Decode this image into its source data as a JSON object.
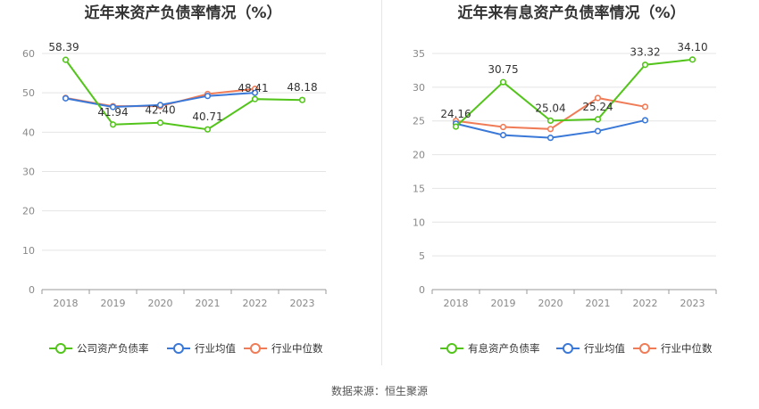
{
  "source": "数据来源：恒生聚源",
  "colors": {
    "company": "#52c41a",
    "avg": "#3a78d8",
    "median": "#f07c57",
    "grid": "#e4e4e4",
    "axis": "#999999"
  },
  "chart_data": [
    {
      "type": "line",
      "title": "近年来资产负债率情况（%）",
      "categories": [
        "2018",
        "2019",
        "2020",
        "2021",
        "2022",
        "2023"
      ],
      "ylim": [
        0,
        60
      ],
      "yticks": [
        0,
        10,
        20,
        30,
        40,
        50,
        60
      ],
      "legend_position": "bottom",
      "series": [
        {
          "name": "公司资产负债率",
          "color": "#52c41a",
          "values": [
            58.39,
            41.94,
            42.4,
            40.71,
            48.41,
            48.18
          ],
          "labels": [
            "58.39",
            "41.94",
            "42.40",
            "40.71",
            "48.41",
            "48.18"
          ]
        },
        {
          "name": "行业均值",
          "color": "#3a78d8",
          "values": [
            48.6,
            46.4,
            46.9,
            49.2,
            50.0,
            null
          ]
        },
        {
          "name": "行业中位数",
          "color": "#f07c57",
          "values": [
            48.7,
            46.6,
            46.6,
            49.7,
            51.0,
            null
          ]
        }
      ]
    },
    {
      "type": "line",
      "title": "近年来有息资产负债率情况（%）",
      "categories": [
        "2018",
        "2019",
        "2020",
        "2021",
        "2022",
        "2023"
      ],
      "ylim": [
        0,
        35
      ],
      "yticks": [
        0,
        5,
        10,
        15,
        20,
        25,
        30,
        35
      ],
      "legend_position": "bottom",
      "series": [
        {
          "name": "有息资产负债率",
          "color": "#52c41a",
          "values": [
            24.16,
            30.75,
            25.04,
            25.24,
            33.32,
            34.1
          ],
          "labels": [
            "24.16",
            "30.75",
            "25.04",
            "25.24",
            "33.32",
            "34.10"
          ]
        },
        {
          "name": "行业均值",
          "color": "#3a78d8",
          "values": [
            24.6,
            22.9,
            22.5,
            23.5,
            25.1,
            null
          ]
        },
        {
          "name": "行业中位数",
          "color": "#f07c57",
          "values": [
            25.0,
            24.1,
            23.8,
            28.4,
            27.1,
            null
          ]
        }
      ]
    }
  ]
}
